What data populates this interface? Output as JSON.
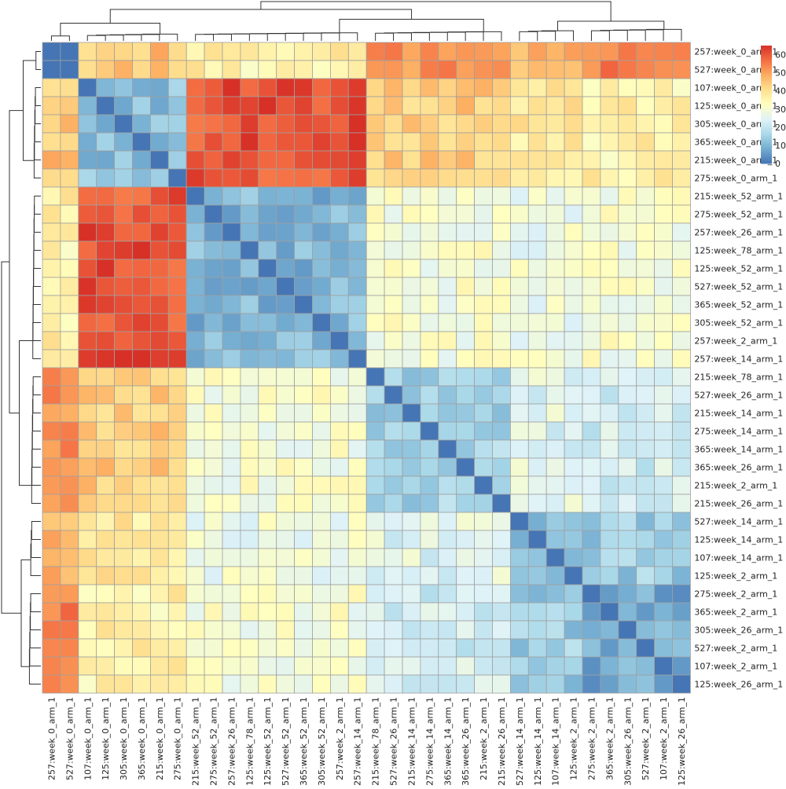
{
  "chart_data": {
    "type": "heatmap",
    "title": "",
    "labels": [
      "257:week_0_arm_1",
      "527:week_0_arm_1",
      "107:week_0_arm_1",
      "125:week_0_arm_1",
      "305:week_0_arm_1",
      "365:week_0_arm_1",
      "215:week_0_arm_1",
      "275:week_0_arm_1",
      "215:week_52_arm_1",
      "275:week_52_arm_1",
      "257:week_26_arm_1",
      "125:week_78_arm_1",
      "125:week_52_arm_1",
      "527:week_52_arm_1",
      "365:week_52_arm_1",
      "305:week_52_arm_1",
      "257:week_2_arm_1",
      "257:week_14_arm_1",
      "215:week_78_arm_1",
      "527:week_26_arm_1",
      "215:week_14_arm_1",
      "275:week_14_arm_1",
      "365:week_14_arm_1",
      "365:week_26_arm_1",
      "215:week_2_arm_1",
      "215:week_26_arm_1",
      "527:week_14_arm_1",
      "125:week_14_arm_1",
      "107:week_14_arm_1",
      "125:week_2_arm_1",
      "275:week_2_arm_1",
      "365:week_2_arm_1",
      "305:week_26_arm_1",
      "527:week_2_arm_1",
      "107:week_2_arm_1",
      "125:week_26_arm_1"
    ],
    "groups": [
      2,
      6,
      10,
      8,
      4,
      6
    ],
    "block_means": [
      [
        0,
        45,
        36,
        52,
        46,
        53
      ],
      [
        45,
        12,
        60,
        44,
        38,
        36
      ],
      [
        36,
        60,
        10,
        30,
        28,
        30
      ],
      [
        52,
        44,
        30,
        15,
        25,
        22
      ],
      [
        46,
        38,
        28,
        25,
        12,
        14
      ],
      [
        53,
        36,
        30,
        22,
        14,
        8
      ]
    ],
    "colorbar": {
      "min": 0,
      "max": 65,
      "ticks": [
        0,
        10,
        20,
        30,
        40,
        50,
        60
      ]
    },
    "colors": [
      "#4575b4",
      "#74add1",
      "#abd9e9",
      "#e0f3f8",
      "#ffffbf",
      "#fee090",
      "#fdae61",
      "#f46d43",
      "#d73027"
    ],
    "grid": true,
    "legend": "top-right",
    "dendrograms": [
      "top",
      "left"
    ]
  }
}
